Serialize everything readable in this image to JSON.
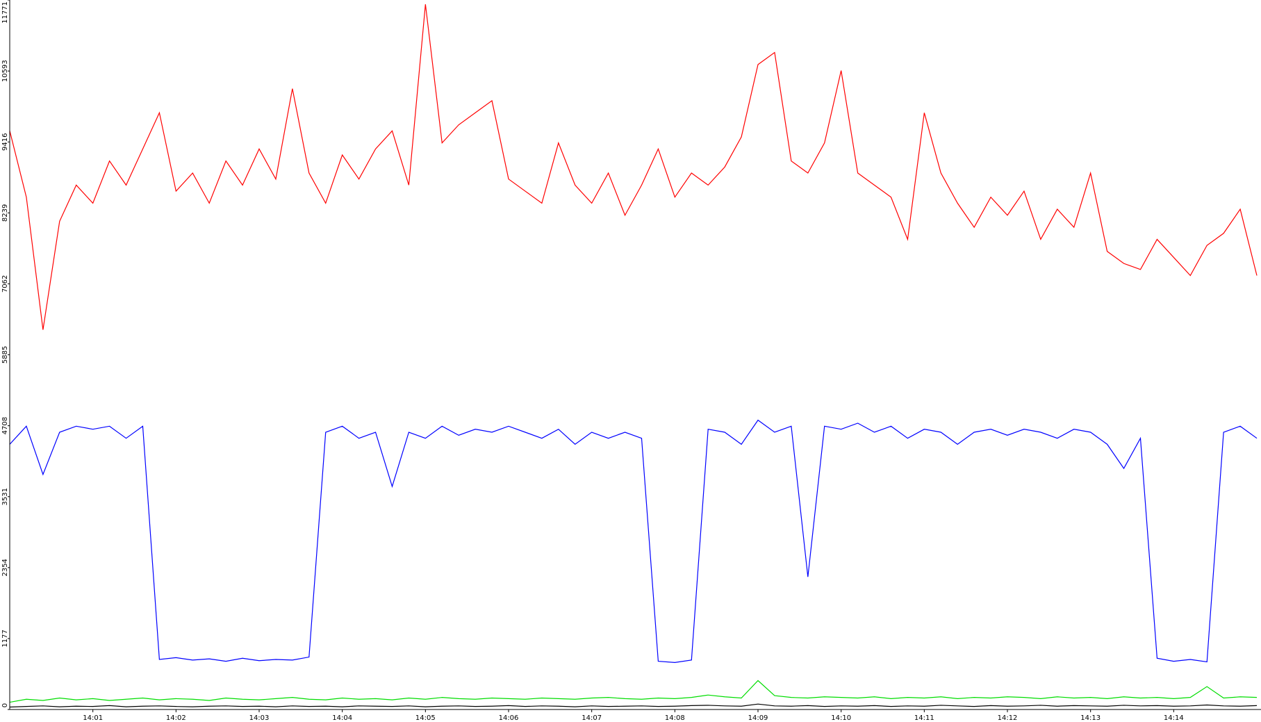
{
  "chart_data": {
    "type": "line",
    "x": [
      0,
      0.2,
      0.4,
      0.6,
      0.8,
      1.0,
      1.2,
      1.4,
      1.6,
      1.8,
      2.0,
      2.2,
      2.4,
      2.6,
      2.8,
      3.0,
      3.2,
      3.4,
      3.6,
      3.8,
      4.0,
      4.2,
      4.4,
      4.6,
      4.8,
      5.0,
      5.2,
      5.4,
      5.6,
      5.8,
      6.0,
      6.2,
      6.4,
      6.6,
      6.8,
      7.0,
      7.2,
      7.4,
      7.6,
      7.8,
      8.0,
      8.2,
      8.4,
      8.6,
      8.8,
      9.0,
      9.2,
      9.4,
      9.6,
      9.8,
      10.0,
      10.2,
      10.4,
      10.6,
      10.8,
      11.0,
      11.2,
      11.4,
      11.6,
      11.8,
      12.0,
      12.2,
      12.4,
      12.6,
      12.8,
      13.0,
      13.2,
      13.4,
      13.6,
      13.8,
      14.0,
      14.2,
      14.4,
      14.6,
      14.8,
      15.0
    ],
    "series": [
      {
        "color": "#ff0000",
        "values": [
          9600,
          8500,
          6300,
          8100,
          8700,
          8400,
          9100,
          8700,
          9300,
          9900,
          8600,
          8900,
          8400,
          9100,
          8700,
          9300,
          8800,
          10300,
          8900,
          8400,
          9200,
          8800,
          9300,
          9600,
          8700,
          11700,
          9400,
          9700,
          9900,
          10100,
          8800,
          8600,
          8400,
          9400,
          8700,
          8400,
          8900,
          8200,
          8700,
          9300,
          8500,
          8900,
          8700,
          9000,
          9500,
          10700,
          10900,
          9100,
          8900,
          9400,
          10600,
          8900,
          8700,
          8500,
          7800,
          9900,
          8900,
          8400,
          8000,
          8500,
          8200,
          8600,
          7800,
          8300,
          8000,
          8900,
          7600,
          7400,
          7300,
          7800,
          7500,
          7200,
          7700,
          7900,
          8300,
          7200
        ]
      },
      {
        "color": "#0000ff",
        "values": [
          4400,
          4700,
          3900,
          4600,
          4700,
          4650,
          4700,
          4500,
          4700,
          830,
          860,
          820,
          840,
          800,
          850,
          810,
          830,
          820,
          870,
          4600,
          4700,
          4500,
          4600,
          3700,
          4600,
          4500,
          4700,
          4550,
          4650,
          4600,
          4700,
          4600,
          4500,
          4650,
          4400,
          4600,
          4500,
          4600,
          4500,
          800,
          780,
          820,
          4650,
          4600,
          4400,
          4800,
          4600,
          4700,
          2200,
          4700,
          4650,
          4750,
          4600,
          4700,
          4500,
          4650,
          4600,
          4400,
          4600,
          4650,
          4550,
          4650,
          4600,
          4500,
          4650,
          4600,
          4400,
          4000,
          4500,
          850,
          800,
          830,
          790,
          4600,
          4700,
          4500
        ]
      },
      {
        "color": "#00dd00",
        "values": [
          120,
          170,
          150,
          190,
          160,
          180,
          150,
          170,
          190,
          160,
          180,
          170,
          150,
          190,
          170,
          160,
          180,
          200,
          170,
          160,
          190,
          170,
          180,
          160,
          190,
          170,
          200,
          180,
          170,
          190,
          180,
          170,
          190,
          180,
          170,
          190,
          200,
          180,
          170,
          190,
          180,
          200,
          240,
          210,
          190,
          480,
          230,
          200,
          190,
          210,
          200,
          190,
          210,
          180,
          200,
          190,
          210,
          180,
          200,
          190,
          210,
          200,
          180,
          210,
          190,
          200,
          180,
          210,
          190,
          200,
          180,
          200,
          380,
          190,
          210,
          200
        ]
      },
      {
        "color": "#000000",
        "values": [
          40,
          50,
          60,
          45,
          55,
          50,
          65,
          45,
          55,
          60,
          50,
          45,
          55,
          60,
          50,
          55,
          45,
          60,
          50,
          55,
          45,
          60,
          55,
          50,
          60,
          45,
          55,
          60,
          50,
          55,
          65,
          50,
          60,
          55,
          45,
          60,
          50,
          55,
          60,
          50,
          55,
          65,
          70,
          60,
          55,
          90,
          60,
          55,
          65,
          50,
          60,
          55,
          65,
          50,
          60,
          55,
          70,
          60,
          50,
          65,
          55,
          60,
          70,
          55,
          65,
          60,
          55,
          70,
          60,
          65,
          55,
          60,
          75,
          60,
          55,
          65
        ]
      }
    ],
    "xlim": [
      0,
      15.05
    ],
    "ylim": [
      0,
      11771
    ],
    "xticks": [
      {
        "value": 1,
        "label": "14:01"
      },
      {
        "value": 2,
        "label": "14:02"
      },
      {
        "value": 3,
        "label": "14:03"
      },
      {
        "value": 4,
        "label": "14:04"
      },
      {
        "value": 5,
        "label": "14:05"
      },
      {
        "value": 6,
        "label": "14:06"
      },
      {
        "value": 7,
        "label": "14:07"
      },
      {
        "value": 8,
        "label": "14:08"
      },
      {
        "value": 9,
        "label": "14:09"
      },
      {
        "value": 10,
        "label": "14:10"
      },
      {
        "value": 11,
        "label": "14:11"
      },
      {
        "value": 12,
        "label": "14:12"
      },
      {
        "value": 13,
        "label": "14:13"
      },
      {
        "value": 14,
        "label": "14:14"
      }
    ],
    "yticks": [
      0,
      1177,
      2354,
      3531,
      4708,
      5885,
      7062,
      8239,
      9416,
      10593,
      11771
    ],
    "grid": false
  }
}
